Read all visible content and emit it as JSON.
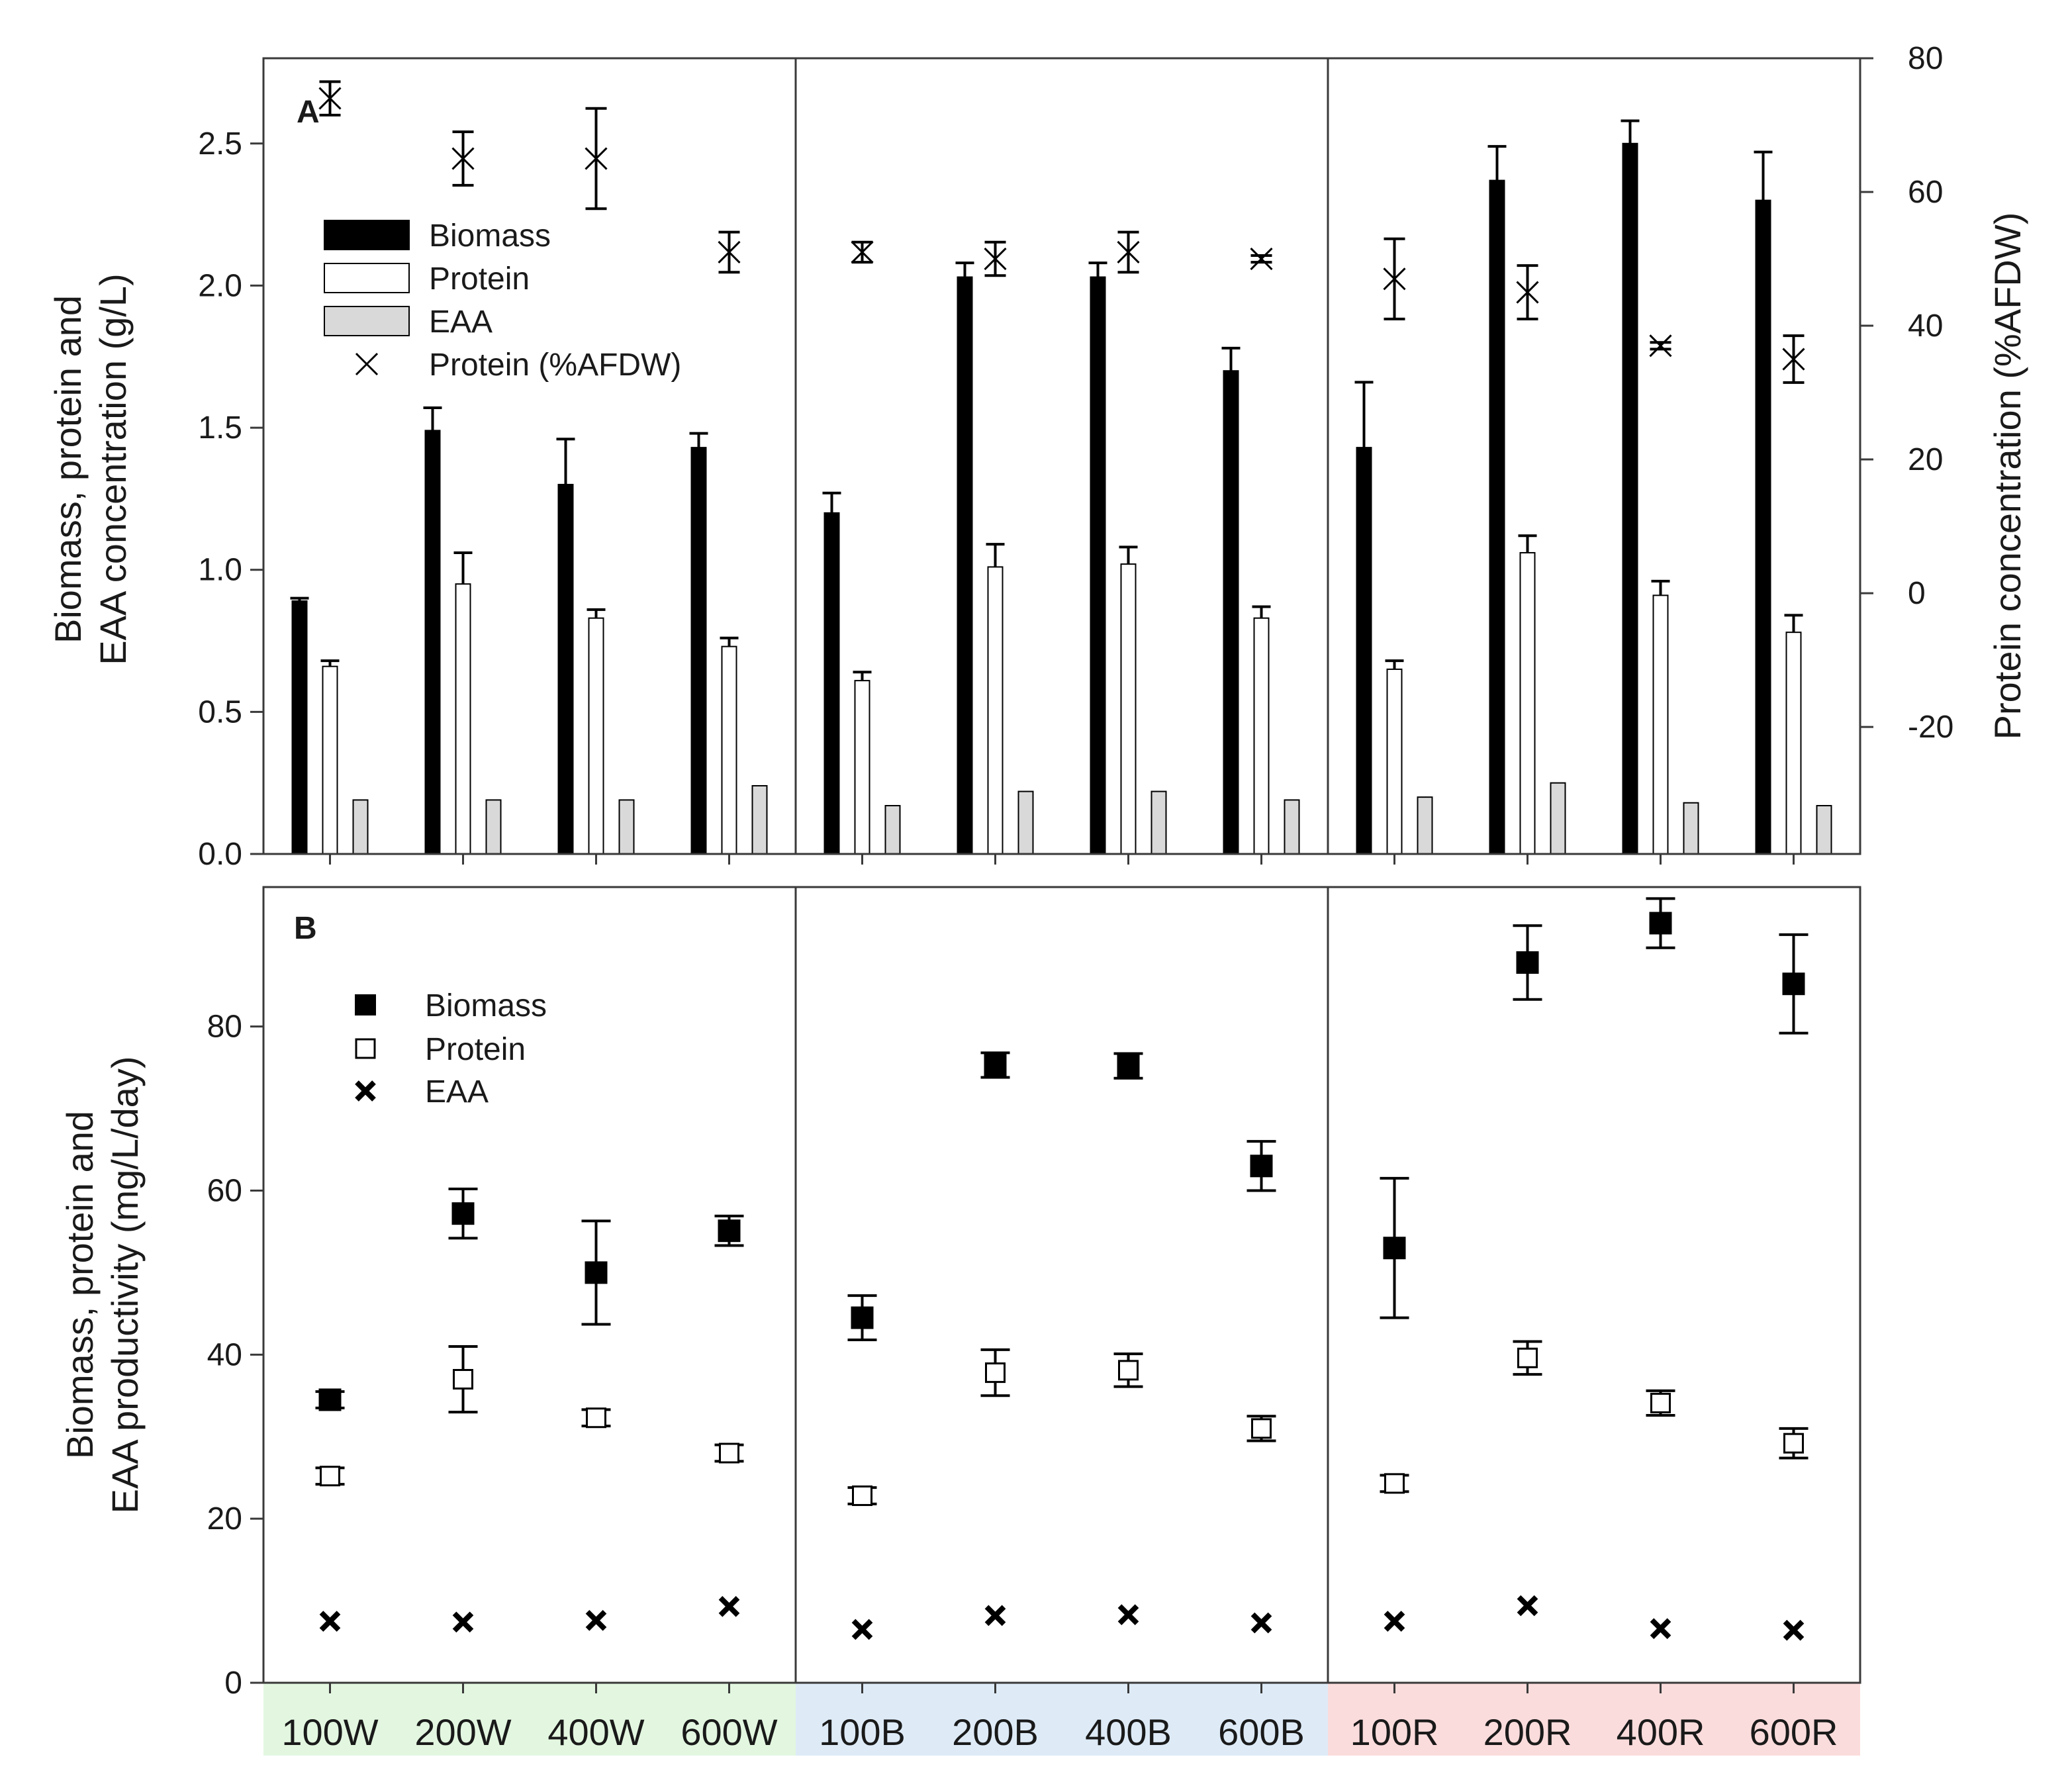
{
  "chart_data": [
    {
      "type": "bar",
      "panel_label": "A",
      "categories": [
        "100W",
        "200W",
        "400W",
        "600W",
        "100B",
        "200B",
        "400B",
        "600B",
        "100R",
        "200R",
        "400R",
        "600R"
      ],
      "ylabel": "Biomass, protein and\nEAA concentration (g/L)",
      "ylim": [
        0,
        2.8
      ],
      "yticks": [
        "0.0",
        "0.5",
        "1.0",
        "1.5",
        "2.0",
        "2.5"
      ],
      "y2label": "Protein concentration (%AFDW)",
      "y2lim": [
        -39,
        80
      ],
      "y2ticks": [
        "-20",
        "0",
        "20",
        "40",
        "60",
        "80"
      ],
      "series": [
        {
          "name": "Biomass",
          "style": "bar-black",
          "values": [
            0.89,
            1.49,
            1.3,
            1.43,
            1.2,
            2.03,
            2.03,
            1.7,
            1.43,
            2.37,
            2.5,
            2.3
          ],
          "errors": [
            0.01,
            0.08,
            0.16,
            0.05,
            0.07,
            0.05,
            0.05,
            0.08,
            0.23,
            0.12,
            0.08,
            0.17
          ]
        },
        {
          "name": "Protein",
          "style": "bar-white",
          "values": [
            0.66,
            0.95,
            0.83,
            0.73,
            0.61,
            1.01,
            1.02,
            0.83,
            0.65,
            1.06,
            0.91,
            0.78
          ],
          "errors": [
            0.02,
            0.11,
            0.03,
            0.03,
            0.03,
            0.08,
            0.06,
            0.04,
            0.03,
            0.06,
            0.05,
            0.06
          ]
        },
        {
          "name": "EAA",
          "style": "bar-gray",
          "values": [
            0.19,
            0.19,
            0.19,
            0.24,
            0.17,
            0.22,
            0.22,
            0.19,
            0.2,
            0.25,
            0.18,
            0.17
          ],
          "errors": [
            0,
            0,
            0,
            0,
            0,
            0,
            0,
            0,
            0,
            0,
            0,
            0
          ]
        },
        {
          "name": "Protein (%AFDW)",
          "style": "x-marker",
          "axis": "right",
          "values": [
            74,
            65,
            65,
            51,
            51,
            50,
            51,
            50,
            47,
            45,
            37,
            35
          ],
          "errors": [
            2.5,
            4,
            7.5,
            3,
            1.5,
            2.5,
            3,
            0.5,
            6,
            4,
            0.5,
            3.5
          ]
        }
      ]
    },
    {
      "type": "scatter",
      "panel_label": "B",
      "categories": [
        "100W",
        "200W",
        "400W",
        "600W",
        "100B",
        "200B",
        "400B",
        "600B",
        "100R",
        "200R",
        "400R",
        "600R"
      ],
      "ylabel": "Biomass, protein and\nEAA productivity (mg/L/day)",
      "ylim": [
        0,
        97
      ],
      "yticks": [
        "0",
        "20",
        "40",
        "60",
        "80"
      ],
      "series": [
        {
          "name": "Biomass",
          "style": "square-filled",
          "values": [
            34.5,
            57.2,
            50.0,
            55.1,
            44.5,
            75.3,
            75.2,
            63.0,
            53.0,
            87.8,
            92.6,
            85.2
          ],
          "errors": [
            1.0,
            3.0,
            6.3,
            1.8,
            2.7,
            1.5,
            1.5,
            3.0,
            8.5,
            4.5,
            3.0,
            6.0
          ]
        },
        {
          "name": "Protein",
          "style": "square-open",
          "values": [
            25.2,
            37.0,
            32.3,
            28.0,
            22.8,
            37.8,
            38.1,
            31.0,
            24.3,
            39.6,
            34.1,
            29.2
          ],
          "errors": [
            1.0,
            4.0,
            1.0,
            1.0,
            1.0,
            2.8,
            2.0,
            1.5,
            1.0,
            2.0,
            1.5,
            1.8
          ]
        },
        {
          "name": "EAA",
          "style": "x-bold",
          "values": [
            7.5,
            7.4,
            7.6,
            9.3,
            6.5,
            8.2,
            8.3,
            7.3,
            7.5,
            9.4,
            6.6,
            6.4
          ],
          "errors": [
            0,
            0,
            0,
            0,
            0,
            0,
            0,
            0,
            0,
            0,
            0,
            0
          ]
        }
      ]
    }
  ],
  "group_colors": [
    "#e3f7e0",
    "#deebf7",
    "#fbdcdc"
  ],
  "series_colors": {
    "biomass": "#000000",
    "protein": "#ffffff",
    "eaa": "#d9d9d9"
  }
}
